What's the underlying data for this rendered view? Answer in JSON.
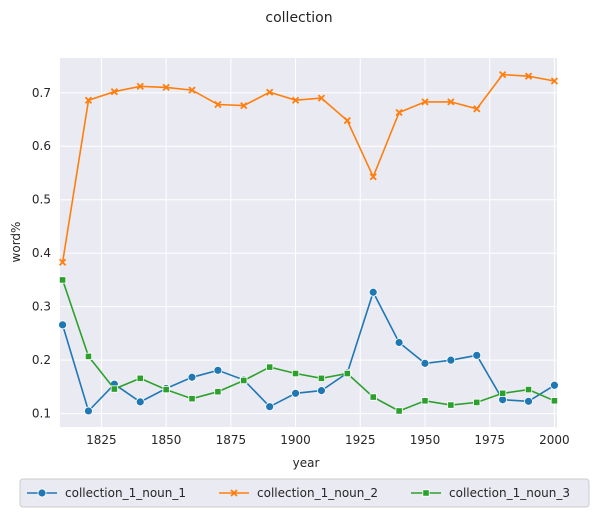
{
  "chart_data": {
    "type": "line",
    "title": "collection",
    "xlabel": "year",
    "ylabel": "word%",
    "xlim": [
      1809,
      2001
    ],
    "ylim": [
      0.075,
      0.765
    ],
    "x_ticks": [
      1825,
      1850,
      1875,
      1900,
      1925,
      1950,
      1975,
      2000
    ],
    "y_ticks": [
      0.1,
      0.2,
      0.3,
      0.4,
      0.5,
      0.6,
      0.7
    ],
    "grid": true,
    "legend_position": "bottom",
    "x": [
      1810,
      1820,
      1830,
      1840,
      1850,
      1860,
      1870,
      1880,
      1890,
      1900,
      1910,
      1920,
      1930,
      1940,
      1950,
      1960,
      1970,
      1980,
      1990,
      2000
    ],
    "series": [
      {
        "name": "collection_1_noun_1",
        "color": "#1f77b4",
        "marker": "circle",
        "values": [
          0.266,
          0.105,
          0.155,
          0.122,
          0.147,
          0.168,
          0.181,
          0.163,
          0.113,
          0.138,
          0.143,
          0.176,
          0.327,
          0.233,
          0.194,
          0.2,
          0.209,
          0.126,
          0.123,
          0.153
        ]
      },
      {
        "name": "collection_1_noun_2",
        "color": "#ff7f0e",
        "marker": "x",
        "values": [
          0.383,
          0.686,
          0.702,
          0.712,
          0.71,
          0.705,
          0.678,
          0.676,
          0.701,
          0.686,
          0.69,
          0.648,
          0.543,
          0.663,
          0.683,
          0.683,
          0.67,
          0.734,
          0.731,
          0.722
        ]
      },
      {
        "name": "collection_1_noun_3",
        "color": "#2ca02c",
        "marker": "square",
        "values": [
          0.35,
          0.207,
          0.146,
          0.166,
          0.145,
          0.128,
          0.141,
          0.162,
          0.187,
          0.175,
          0.166,
          0.175,
          0.131,
          0.105,
          0.124,
          0.116,
          0.121,
          0.138,
          0.145,
          0.124
        ]
      }
    ]
  }
}
